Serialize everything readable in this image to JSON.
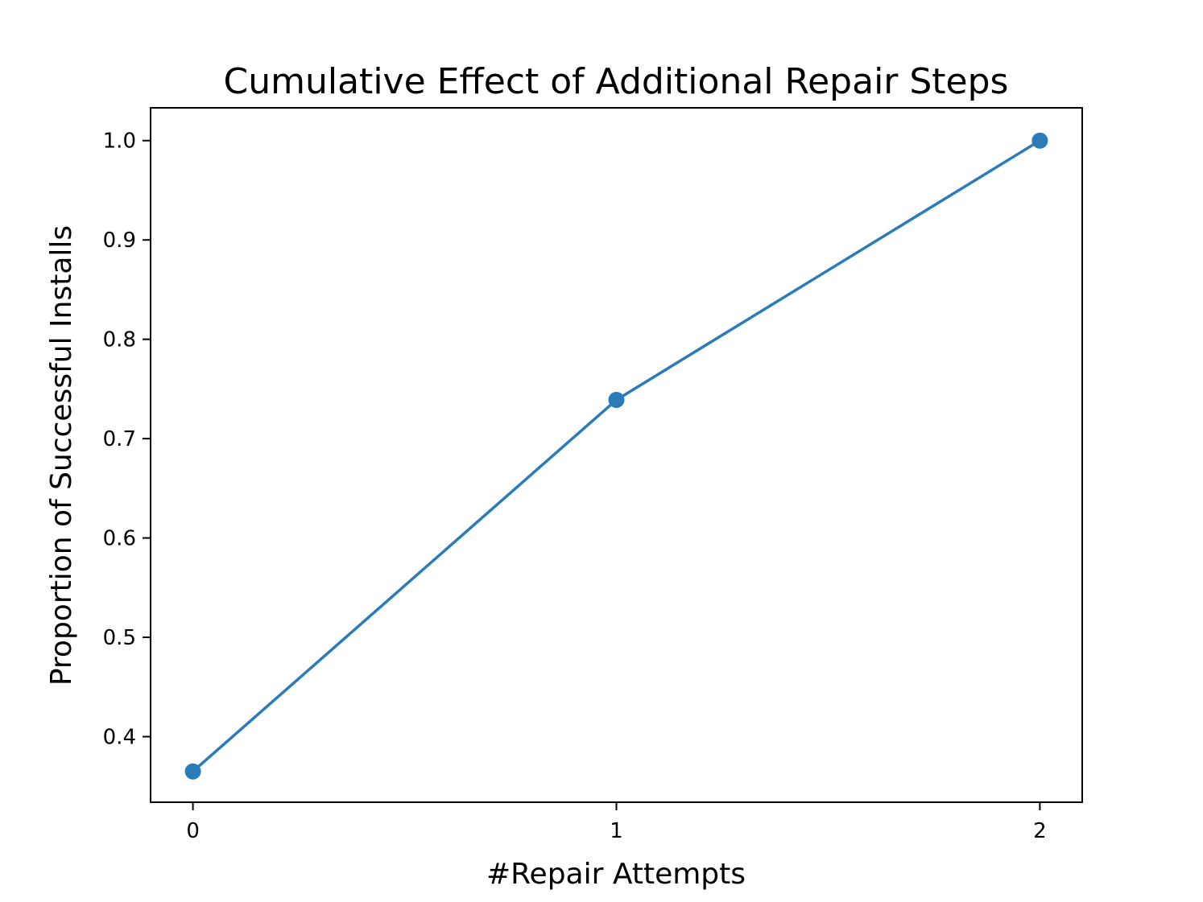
{
  "chart_data": {
    "type": "line",
    "title": "Cumulative Effect of Additional Repair Steps",
    "xlabel": "#Repair Attempts",
    "ylabel": "Proportion of Successful Installs",
    "x": [
      0,
      1,
      2
    ],
    "series": [
      {
        "values": [
          0.365,
          0.739,
          1.0
        ],
        "color": "#2b7bba",
        "marker": "circle"
      }
    ],
    "xlim": [
      -0.1,
      2.1
    ],
    "ylim": [
      0.334,
      1.033
    ],
    "xticks": [
      0,
      1,
      2
    ],
    "xtick_labels": [
      "0",
      "1",
      "2"
    ],
    "yticks": [
      0.4,
      0.5,
      0.6,
      0.7,
      0.8,
      0.9,
      1.0
    ],
    "ytick_labels": [
      "0.4",
      "0.5",
      "0.6",
      "0.7",
      "0.8",
      "0.9",
      "1.0"
    ],
    "grid": false,
    "legend": "none"
  }
}
